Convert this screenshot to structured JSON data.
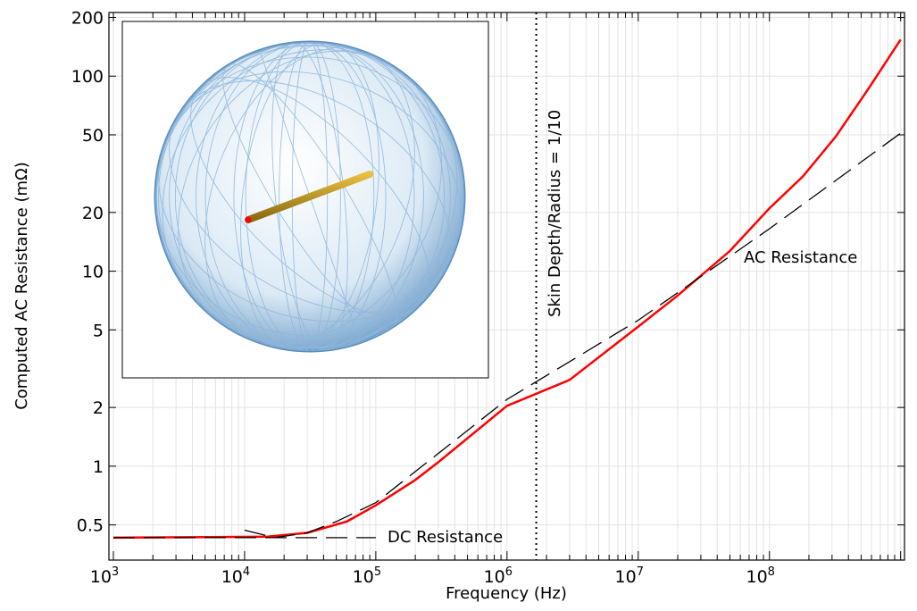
{
  "chart_data": {
    "type": "line",
    "xlabel": "Frequency (Hz)",
    "ylabel": "Computed AC Resistance (mΩ)",
    "xscale": "log",
    "yscale": "log",
    "xlim": [
      925,
      1070000000
    ],
    "ylim": [
      0.33,
      212
    ],
    "grid": true,
    "x_ticks": [
      {
        "value": 1000,
        "base": "10",
        "exp": "3"
      },
      {
        "value": 10000,
        "base": "10",
        "exp": "4"
      },
      {
        "value": 100000,
        "base": "10",
        "exp": "5"
      },
      {
        "value": 1000000,
        "base": "10",
        "exp": "6"
      },
      {
        "value": 10000000,
        "base": "10",
        "exp": "7"
      },
      {
        "value": 100000000,
        "base": "10",
        "exp": "8"
      }
    ],
    "y_ticks": [
      {
        "value": 0.5,
        "label": "0.5"
      },
      {
        "value": 1,
        "label": "1"
      },
      {
        "value": 2,
        "label": "2"
      },
      {
        "value": 5,
        "label": "5"
      },
      {
        "value": 10,
        "label": "10"
      },
      {
        "value": 20,
        "label": "20"
      },
      {
        "value": 50,
        "label": "50"
      },
      {
        "value": 100,
        "label": "100"
      },
      {
        "value": 200,
        "label": "200"
      }
    ],
    "series": [
      {
        "color": "#ff0000",
        "style": "solid",
        "points": [
          [
            1000,
            0.43
          ],
          [
            15000,
            0.435
          ],
          [
            30000,
            0.455
          ],
          [
            60000,
            0.52
          ],
          [
            100000,
            0.63
          ],
          [
            200000,
            0.85
          ],
          [
            300000,
            1.05
          ],
          [
            1000000,
            2.04
          ],
          [
            3000000,
            2.77
          ],
          [
            10000000,
            5.2
          ],
          [
            20000000,
            7.5
          ],
          [
            50000000,
            12.7
          ],
          [
            100000000,
            21
          ],
          [
            180000000,
            30.6
          ],
          [
            320000000,
            49
          ],
          [
            560000000,
            85
          ],
          [
            1000000000,
            154
          ]
        ]
      },
      {
        "color": "#000000",
        "style": "dashed",
        "points": [
          [
            1000,
            0.43
          ],
          [
            100000,
            0.43
          ]
        ]
      },
      {
        "color": "#000000",
        "style": "dashed",
        "points": [
          [
            10000,
            0.47
          ],
          [
            17000,
            0.43
          ],
          [
            30000,
            0.455
          ],
          [
            50000,
            0.52
          ],
          [
            100000,
            0.65
          ],
          [
            1000000,
            2.2
          ],
          [
            10000000,
            5.6
          ],
          [
            100000000,
            16.5
          ],
          [
            1000000000,
            51
          ]
        ]
      }
    ],
    "vline": {
      "x": 1670000,
      "style": "dotted",
      "label": "Skin Depth/Radius = 1/10"
    },
    "annotations": [
      {
        "text": "DC Resistance",
        "x": 140000,
        "y": 0.43
      },
      {
        "text": "AC Resistance",
        "x": 65000000,
        "y": 12
      }
    ]
  }
}
